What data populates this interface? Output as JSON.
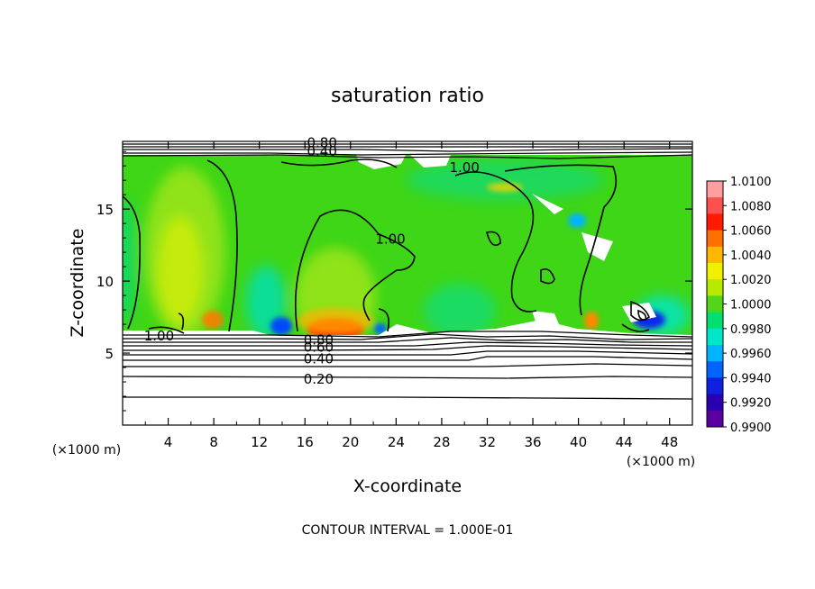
{
  "chart_data": {
    "type": "heatmap",
    "title": "saturation ratio",
    "xlabel": "X-coordinate",
    "ylabel": "Z-coordinate",
    "x_units": "(×1000 m)",
    "y_units": "(×1000 m)",
    "xlim": [
      0,
      50
    ],
    "ylim": [
      0,
      19.7
    ],
    "x_ticks": [
      4,
      8,
      12,
      16,
      20,
      24,
      28,
      32,
      36,
      40,
      44,
      48
    ],
    "y_ticks": [
      5,
      10,
      15
    ],
    "footer": "CONTOUR INTERVAL = 1.000E-01",
    "colorbar": {
      "labels": [
        "1.0100",
        "1.0080",
        "1.0060",
        "1.0040",
        "1.0020",
        "1.0000",
        "0.9980",
        "0.9960",
        "0.9940",
        "0.9920",
        "0.9900"
      ],
      "colors": [
        "#ff9e9e",
        "#ff5050",
        "#ff1a00",
        "#ff7000",
        "#ffb800",
        "#f0f000",
        "#b8ea00",
        "#52d61a",
        "#00e070",
        "#00e6c8",
        "#00b4ff",
        "#0064ff",
        "#1020e0",
        "#2a00b0",
        "#5a00a0"
      ]
    },
    "contour_labels": [
      {
        "text": "1.00",
        "x": 23.5,
        "y": 12.9
      },
      {
        "text": "1.00",
        "x": 30.0,
        "y": 17.9
      },
      {
        "text": "1.00",
        "x": 3.2,
        "y": 6.2
      },
      {
        "text": "0.80",
        "x": 17.2,
        "y": 5.9
      },
      {
        "text": "0.60",
        "x": 17.2,
        "y": 5.4
      },
      {
        "text": "0.40",
        "x": 17.2,
        "y": 4.6
      },
      {
        "text": "0.20",
        "x": 17.2,
        "y": 3.2
      },
      {
        "text": "0.80",
        "x": 17.5,
        "y": 19.6
      },
      {
        "text": "0.40",
        "x": 17.5,
        "y": 19.0
      }
    ]
  }
}
